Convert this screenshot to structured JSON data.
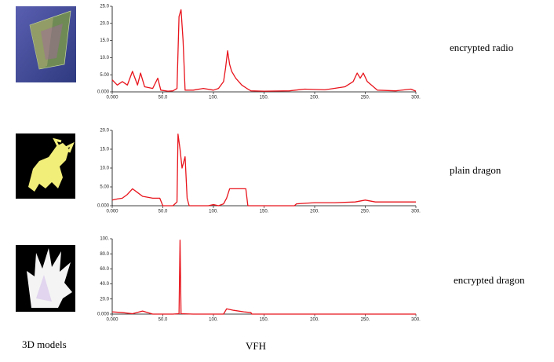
{
  "chart_data": [
    {
      "type": "line",
      "title": "encrypted radio",
      "x": [
        0,
        5,
        10,
        15,
        20,
        25,
        28,
        32,
        40,
        45,
        48,
        55,
        60,
        64,
        66,
        68,
        70,
        72,
        80,
        90,
        100,
        105,
        110,
        112,
        114,
        116,
        118,
        122,
        128,
        133,
        137,
        150,
        175,
        190,
        210,
        230,
        238,
        242,
        245,
        248,
        252,
        256,
        262,
        280,
        295,
        300
      ],
      "series": [
        {
          "color": "#e8141c",
          "values": [
            3.5,
            2,
            3,
            2,
            6,
            2,
            5.5,
            1.5,
            1,
            4,
            0.5,
            0.2,
            0.3,
            1,
            22,
            24,
            15,
            0.5,
            0.5,
            1,
            0.5,
            1,
            3,
            7,
            12,
            8,
            6,
            4,
            2,
            1,
            0.3,
            0.2,
            0.3,
            0.8,
            0.6,
            1.5,
            3,
            5.5,
            4,
            5.5,
            3,
            2,
            0.5,
            0.3,
            0.8,
            0.2
          ]
        }
      ],
      "xlim": [
        0,
        300
      ],
      "ylim": [
        0,
        25
      ],
      "xticks": [
        {
          "value": 0,
          "label": "0.000"
        },
        {
          "value": 50,
          "label": "50.0"
        },
        {
          "value": 100,
          "label": "100."
        },
        {
          "value": 150,
          "label": "150."
        },
        {
          "value": 200,
          "label": "200."
        },
        {
          "value": 250,
          "label": "250."
        },
        {
          "value": 300,
          "label": "300."
        }
      ],
      "yticks": [
        {
          "value": 0,
          "label": "0.000"
        },
        {
          "value": 5,
          "label": "5.00"
        },
        {
          "value": 10,
          "label": "10.0"
        },
        {
          "value": 15,
          "label": "15.0"
        },
        {
          "value": 20,
          "label": "20.0"
        },
        {
          "value": 25,
          "label": "25.0"
        }
      ]
    },
    {
      "type": "line",
      "title": "plain dragon",
      "x": [
        0,
        5,
        10,
        15,
        20,
        25,
        30,
        40,
        47,
        50,
        60,
        62,
        64,
        65,
        67,
        69,
        71,
        72,
        74,
        76,
        95,
        100,
        105,
        110,
        113,
        116,
        125,
        132,
        134,
        180,
        182,
        200,
        220,
        240,
        250,
        260,
        280,
        300
      ],
      "series": [
        {
          "color": "#e8141c",
          "values": [
            1.5,
            1.8,
            2,
            3,
            4.5,
            3.5,
            2.5,
            2,
            2,
            0,
            0,
            0.5,
            1,
            19,
            15,
            10,
            12,
            13,
            2,
            0,
            0,
            0.3,
            0,
            0.5,
            2,
            4.5,
            4.5,
            4.5,
            0,
            0,
            0.5,
            0.8,
            0.8,
            1,
            1.5,
            1,
            1,
            1
          ]
        }
      ],
      "xlim": [
        0,
        300
      ],
      "ylim": [
        0,
        20
      ],
      "xticks": [
        {
          "value": 0,
          "label": "0.000"
        },
        {
          "value": 50,
          "label": "50.0"
        },
        {
          "value": 100,
          "label": "100."
        },
        {
          "value": 150,
          "label": "150."
        },
        {
          "value": 200,
          "label": "200."
        },
        {
          "value": 250,
          "label": "250."
        },
        {
          "value": 300,
          "label": "300."
        }
      ],
      "yticks": [
        {
          "value": 0,
          "label": "0.000"
        },
        {
          "value": 5,
          "label": "5.00"
        },
        {
          "value": 10,
          "label": "10.0"
        },
        {
          "value": 15,
          "label": "15.0"
        },
        {
          "value": 20,
          "label": "20.0"
        }
      ]
    },
    {
      "type": "line",
      "title": "encrypted dragon",
      "x": [
        0,
        10,
        20,
        30,
        40,
        60,
        66,
        67,
        68,
        80,
        110,
        113,
        120,
        130,
        137,
        138,
        300
      ],
      "series": [
        {
          "color": "#e8141c",
          "values": [
            3,
            2,
            0.5,
            4,
            0,
            0,
            0.5,
            98,
            0.5,
            0,
            0,
            7,
            5,
            3,
            2,
            0,
            0
          ]
        }
      ],
      "xlim": [
        0,
        300
      ],
      "ylim": [
        0,
        100
      ],
      "xticks": [
        {
          "value": 0,
          "label": "0.000"
        },
        {
          "value": 50,
          "label": "50.0"
        },
        {
          "value": 100,
          "label": "100."
        },
        {
          "value": 150,
          "label": "150."
        },
        {
          "value": 200,
          "label": "200."
        },
        {
          "value": 250,
          "label": "250."
        },
        {
          "value": 300,
          "label": "300."
        }
      ],
      "yticks": [
        {
          "value": 0,
          "label": "0.000"
        },
        {
          "value": 20,
          "label": "20.0"
        },
        {
          "value": 40,
          "label": "40.0"
        },
        {
          "value": 60,
          "label": "60.0"
        },
        {
          "value": 80,
          "label": "80.0"
        },
        {
          "value": 100,
          "label": "100."
        }
      ]
    }
  ],
  "footer": {
    "left": "3D models",
    "center": "VFH"
  }
}
